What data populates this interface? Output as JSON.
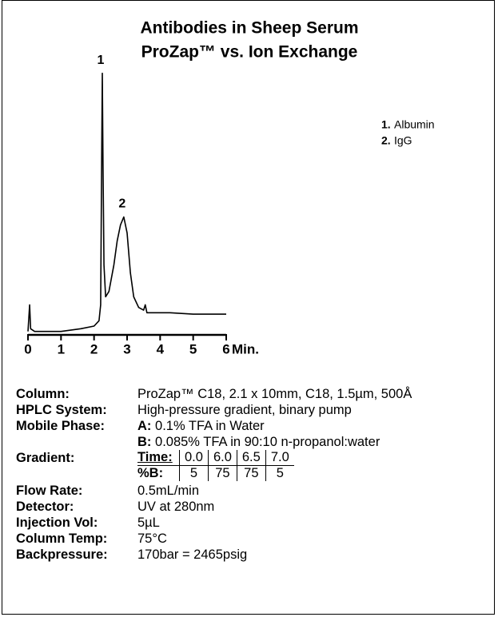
{
  "chart_data": {
    "type": "line",
    "title": [
      "Antibodies in Sheep Serum",
      "ProZap™ vs. Ion Exchange"
    ],
    "xlabel": "Min.",
    "xlim": [
      0,
      6
    ],
    "xticks": [
      0,
      1,
      2,
      3,
      4,
      5,
      6
    ],
    "ylim": [
      0,
      100
    ],
    "color": "#000000",
    "x": [
      0,
      0.05,
      0.08,
      0.2,
      1.0,
      1.6,
      2.0,
      2.15,
      2.2,
      2.23,
      2.25,
      2.27,
      2.3,
      2.35,
      2.45,
      2.6,
      2.7,
      2.8,
      2.9,
      3.0,
      3.1,
      3.2,
      3.35,
      3.5,
      3.55,
      3.6,
      3.8,
      4.2,
      4.3,
      5.0,
      6.0
    ],
    "values": [
      1,
      11,
      2,
      1,
      1,
      2,
      3,
      5,
      11,
      65,
      98,
      65,
      26,
      14,
      16,
      26,
      35,
      41,
      44,
      38,
      23,
      14,
      10,
      9,
      11,
      8,
      8,
      8,
      8,
      7.5,
      7.5
    ],
    "peak_labels": [
      {
        "label": "1",
        "x": 2.25,
        "y": 98
      },
      {
        "label": "2",
        "x": 2.9,
        "y": 44
      }
    ],
    "legend": [
      {
        "number": "1.",
        "name": "Albumin"
      },
      {
        "number": "2.",
        "name": "IgG"
      }
    ]
  },
  "details": {
    "column": {
      "label": "Column:",
      "value": "ProZap™ C18, 2.1 x 10mm, C18, 1.5µm, 500Å"
    },
    "hplc_system": {
      "label": "HPLC System:",
      "value": "High-pressure gradient, binary pump"
    },
    "mobile_phase": {
      "label": "Mobile Phase:",
      "a_prefix": "A:",
      "a_value": "0.1% TFA in Water",
      "b_prefix": "B:",
      "b_value": "0.085% TFA in 90:10 n-propanol:water"
    },
    "gradient": {
      "label": "Gradient:",
      "rows": [
        [
          "Time:",
          "0.0",
          "6.0",
          "6.5",
          "7.0"
        ],
        [
          "%B:",
          "5",
          "75",
          "75",
          "5"
        ]
      ]
    },
    "flow_rate": {
      "label": "Flow Rate:",
      "value": "0.5mL/min"
    },
    "detector": {
      "label": "Detector:",
      "value": "UV at 280nm"
    },
    "injection_vol": {
      "label": "Injection Vol:",
      "value": "5µL"
    },
    "column_temp": {
      "label": "Column Temp:",
      "value": "75°C"
    },
    "backpressure": {
      "label": "Backpressure:",
      "value": "170bar = 2465psig"
    }
  }
}
